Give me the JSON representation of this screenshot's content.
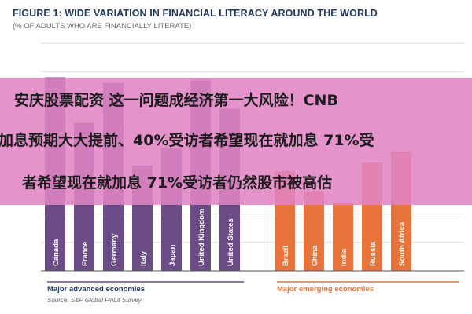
{
  "title": "FIGURE 1: WIDE VARIATION IN FINANCIAL LITERACY AROUND THE WORLD",
  "subtitle": "(% OF ADULTS WHO ARE FINANCIALLY LITERATE)",
  "overlay": {
    "line1": "安庆股票配资 这一问题成经济第一大风险！CNB",
    "line2": "加息预期大大提前、40%受访者希望现在就加息 71%受",
    "line3": "者希望现在就加息 71%受访者仍然股市被高估"
  },
  "colors": {
    "advanced": "#6b4c86",
    "emerging": "#e8743b",
    "grid": "#d8d8d8",
    "overlay": "#e084c4"
  },
  "groups": {
    "advanced_label": "Major advanced economies",
    "emerging_label": "Major emerging economies"
  },
  "source": "Source: S&P Global FinLit Survey",
  "chart_data": {
    "type": "bar",
    "title": "FIGURE 1: WIDE VARIATION IN FINANCIAL LITERACY AROUND THE WORLD",
    "subtitle": "(% OF ADULTS WHO ARE FINANCIALLY LITERATE)",
    "ylim": [
      0,
      80
    ],
    "grid": true,
    "categories": [
      "Canada",
      "France",
      "Germany",
      "Italy",
      "Japan",
      "United Kingdom",
      "United States",
      "Brazil",
      "China",
      "India",
      "Russia",
      "South Africa"
    ],
    "series": [
      {
        "name": "Major advanced economies",
        "values": [
          68,
          52,
          66,
          37,
          43,
          67,
          57,
          null,
          null,
          null,
          null,
          null
        ]
      },
      {
        "name": "Major emerging economies",
        "values": [
          null,
          null,
          null,
          null,
          null,
          null,
          null,
          35,
          28,
          24,
          38,
          42
        ]
      }
    ]
  }
}
